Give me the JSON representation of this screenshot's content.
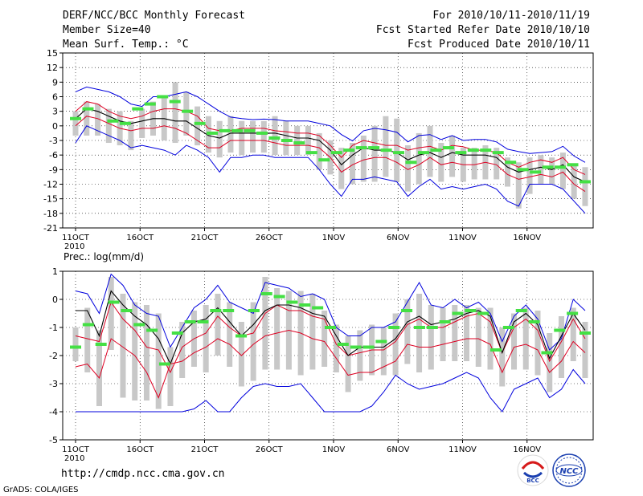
{
  "header": {
    "title": "DERF/NCC/BCC Monthly Forecast",
    "member": "Member Size=40",
    "variable1": "Mean Surf. Temp.: °C",
    "period": "For 2010/10/11-2010/11/19",
    "started": "Fcst Started Refer Date 2010/10/10",
    "produced": "Fcst Produced Date 2010/10/11"
  },
  "footer": {
    "url": "http://cmdp.ncc.cma.gov.cn",
    "grads": "GrADS: COLA/IGES",
    "logo1": "BCC",
    "logo2": "NCC"
  },
  "colors": {
    "blue": "#0000dd",
    "red": "#dd0022",
    "black": "#000000",
    "green": "#44e044",
    "gray": "#c8c8c8"
  },
  "chart_data": [
    {
      "type": "line",
      "title": "Mean Surf. Temp.: °C",
      "ylim": [
        -21,
        15
      ],
      "yticks": [
        15,
        12,
        9,
        6,
        3,
        0,
        -3,
        -6,
        -9,
        -12,
        -15,
        -18,
        -21
      ],
      "xtick_labels": [
        "11OCT",
        "16OCT",
        "21OCT",
        "26OCT",
        "1NOV",
        "6NOV",
        "11NOV",
        "16NOV"
      ],
      "year_label": "2010",
      "days": 40,
      "series": [
        {
          "name": "max",
          "color": "blue",
          "values": [
            7,
            8,
            7.5,
            7,
            6,
            4.5,
            4,
            6,
            6,
            6.5,
            7,
            6,
            4.5,
            3,
            1.8,
            1.5,
            1.3,
            1.4,
            1.3,
            1,
            1,
            1,
            0.5,
            0,
            -1.8,
            -3.1,
            -1,
            -0.5,
            -0.8,
            -1.3,
            -3.3,
            -2,
            -1.8,
            -2.8,
            -2,
            -3,
            -2.8,
            -2.8,
            -3.3,
            -4.8,
            -5.3,
            -5.7,
            -5.5,
            -5.3,
            -4.2,
            -6.2,
            -7.5
          ]
        },
        {
          "name": "upper",
          "color": "red",
          "values": [
            3,
            5,
            4.5,
            3,
            2,
            1.5,
            2,
            3,
            3.5,
            3.5,
            3,
            2,
            -0.5,
            -1,
            -1,
            -0.5,
            -0.5,
            -0.5,
            -1,
            -1.2,
            -1.5,
            -1.5,
            -2,
            -4,
            -6.5,
            -4,
            -3,
            -3.5,
            -4,
            -4,
            -5,
            -4.5,
            -4.2,
            -5,
            -4,
            -4.3,
            -5,
            -5,
            -5.5,
            -7.5,
            -8.5,
            -7.5,
            -7,
            -7.5,
            -6.5,
            -9,
            -10
          ]
        },
        {
          "name": "median",
          "color": "black",
          "values": [
            1.5,
            3.5,
            3,
            2,
            1,
            0.5,
            1,
            1.5,
            1.5,
            1,
            1,
            -0.5,
            -2,
            -2.5,
            -1.5,
            -1.5,
            -1.5,
            -1.5,
            -1.5,
            -2,
            -2.5,
            -2.5,
            -3,
            -5,
            -8,
            -6,
            -4.5,
            -5,
            -5,
            -5.5,
            -7,
            -6,
            -5.5,
            -6.5,
            -5.5,
            -6,
            -6,
            -6,
            -6.5,
            -8.5,
            -9.5,
            -9,
            -8.5,
            -9,
            -8,
            -10.5,
            -11.5
          ]
        },
        {
          "name": "lower",
          "color": "red",
          "values": [
            0,
            2,
            1.5,
            0.5,
            -0.5,
            -1,
            -0.5,
            -0.5,
            0,
            -0.5,
            -1.5,
            -3,
            -4.5,
            -4.5,
            -3,
            -3,
            -3,
            -3,
            -3.5,
            -4,
            -4,
            -4,
            -4.5,
            -6.5,
            -9.5,
            -8,
            -7,
            -6.5,
            -6.5,
            -7.5,
            -9,
            -8,
            -6.5,
            -8,
            -7.5,
            -8,
            -8,
            -7.5,
            -8,
            -10,
            -11,
            -10.5,
            -10,
            -10.5,
            -9.5,
            -12,
            -13.5
          ]
        },
        {
          "name": "min",
          "color": "blue",
          "values": [
            -3.5,
            0,
            -1,
            -2,
            -3,
            -4.5,
            -4,
            -4.5,
            -5,
            -6,
            -4,
            -5,
            -6.5,
            -9.5,
            -6.5,
            -6.5,
            -6,
            -6,
            -6.5,
            -6.5,
            -6.5,
            -6.5,
            -9,
            -12,
            -14.5,
            -11,
            -11,
            -10.5,
            -11,
            -11.5,
            -14.5,
            -12.5,
            -11,
            -13,
            -12.5,
            -13,
            -12.5,
            -12,
            -13,
            -15.5,
            -16.5,
            -12,
            -12,
            -12,
            -13,
            -15.5,
            -18
          ]
        }
      ],
      "boxes": {
        "hi": [
          3,
          5,
          4.5,
          3.5,
          3,
          1,
          3.5,
          5,
          6,
          9,
          7,
          4,
          2,
          1,
          2,
          1,
          1,
          1,
          2,
          1,
          0,
          0,
          -1.5,
          -3,
          -4.5,
          -3.5,
          -2,
          0,
          2,
          1.5,
          -4,
          -1.5,
          0,
          -3.5,
          -2,
          -4.5,
          -4.5,
          -4,
          -4.5,
          -6.5,
          -7.5,
          -6.5,
          -6,
          -6.5,
          -5.5,
          -8,
          -8.5
        ],
        "lo": [
          -2,
          -2,
          -2,
          -3.5,
          -4,
          -5,
          -2.5,
          -2,
          -3,
          -3.5,
          -2,
          -4,
          -5.5,
          -6.5,
          -5.5,
          -6,
          -5.5,
          -5.5,
          -6,
          -6,
          -6,
          -6,
          -9,
          -10,
          -13,
          -12,
          -11.5,
          -11.5,
          -10.5,
          -11.5,
          -13.5,
          -12,
          -10.5,
          -11.5,
          -10.5,
          -11.5,
          -11,
          -11,
          -11,
          -12.5,
          -17,
          -14,
          -12,
          -12,
          -13,
          -15,
          -16.5
        ]
      },
      "observed": [
        1.5,
        3.5,
        null,
        1,
        0.5,
        3.5,
        4.5,
        6,
        5,
        3,
        0.5,
        -1.5,
        -1,
        -1,
        -1,
        -1.5,
        -2.5,
        -3,
        -3.5,
        -5.5,
        -7,
        -5.5,
        -5,
        -4.5,
        -4.5,
        -5,
        -5.5,
        -7.5,
        -5.5,
        -5,
        -4.5,
        -5.5,
        -5,
        -5,
        -5.5,
        -7.5,
        -9,
        -9.5,
        -8.5,
        -8.5,
        -8,
        -11.5
      ]
    },
    {
      "type": "line",
      "title": "Prec.: log(mm/d)",
      "ylim": [
        -5,
        1
      ],
      "yticks": [
        1,
        0,
        -1,
        -2,
        -3,
        -4,
        -5
      ],
      "xtick_labels": [
        "11OCT",
        "16OCT",
        "21OCT",
        "26OCT",
        "1NOV",
        "6NOV",
        "11NOV",
        "16NOV"
      ],
      "year_label": "2010",
      "days": 40,
      "series": [
        {
          "name": "max",
          "color": "blue",
          "values": [
            0.3,
            0.2,
            -0.5,
            0.9,
            0.5,
            -0.2,
            -0.5,
            -0.6,
            -1.7,
            -1,
            -0.3,
            0,
            0.5,
            -0.1,
            -0.3,
            -0.5,
            0.6,
            0.5,
            0.4,
            0.1,
            0.2,
            0,
            -1,
            -1.3,
            -1.3,
            -1,
            -1,
            -0.8,
            -0.1,
            0.6,
            -0.2,
            -0.3,
            0,
            -0.3,
            -0.1,
            -0.5,
            -1.5,
            -0.6,
            -0.2,
            -0.7,
            -1.8,
            -1.4,
            0,
            -0.4
          ]
        },
        {
          "name": "upper",
          "color": "red",
          "values": [
            -1.3,
            -1.4,
            -1.5,
            -0.1,
            -0.7,
            -1.1,
            -1.7,
            -1.8,
            -2.6,
            -1.7,
            -1.4,
            -1.2,
            -0.6,
            -1,
            -1.3,
            -1.2,
            -0.5,
            -0.2,
            -0.4,
            -0.4,
            -0.6,
            -0.7,
            -1.6,
            -2,
            -1.9,
            -1.8,
            -1.8,
            -1.5,
            -0.9,
            -0.7,
            -1,
            -1,
            -0.8,
            -0.6,
            -0.5,
            -0.8,
            -1.9,
            -1,
            -0.7,
            -1.1,
            -2.2,
            -1.5,
            -0.7,
            -1.4
          ]
        },
        {
          "name": "median",
          "color": "black",
          "values": [
            -0.4,
            -0.4,
            -1.3,
            0.3,
            -0.2,
            -0.6,
            -0.9,
            -1.4,
            -2.3,
            -1.2,
            -0.8,
            -0.7,
            -0.3,
            -0.8,
            -1.3,
            -0.9,
            -0.4,
            -0.2,
            -0.2,
            -0.3,
            -0.5,
            -0.6,
            -1.3,
            -2,
            -1.7,
            -1.7,
            -1.7,
            -1.4,
            -0.8,
            -0.6,
            -0.9,
            -0.8,
            -0.7,
            -0.5,
            -0.4,
            -0.6,
            -1.9,
            -0.8,
            -0.5,
            -0.9,
            -2.1,
            -1.3,
            -0.5,
            -1.1
          ]
        },
        {
          "name": "lower",
          "color": "red",
          "values": [
            -2.4,
            -2.3,
            -2.8,
            -1.4,
            -1.7,
            -2,
            -2.6,
            -3.5,
            -2.3,
            -2.2,
            -1.9,
            -1.7,
            -1.4,
            -1.6,
            -2,
            -1.6,
            -1.3,
            -1.2,
            -1.1,
            -1.2,
            -1.4,
            -1.5,
            -2.1,
            -2.7,
            -2.6,
            -2.6,
            -2.4,
            -2.2,
            -1.6,
            -1.7,
            -1.7,
            -1.6,
            -1.5,
            -1.4,
            -1.4,
            -1.6,
            -2.6,
            -1.7,
            -1.6,
            -1.8,
            -2.6,
            -2.2,
            -1.5,
            -1.9
          ]
        },
        {
          "name": "min",
          "color": "blue",
          "values": [
            -4,
            -4,
            -4,
            -4,
            -4,
            -4,
            -4,
            -4,
            -4,
            -4,
            -3.9,
            -3.6,
            -4,
            -4,
            -3.5,
            -3.1,
            -3,
            -3.1,
            -3.1,
            -3,
            -3.5,
            -4,
            -4,
            -4,
            -4,
            -3.8,
            -3.3,
            -2.7,
            -3,
            -3.2,
            -3.1,
            -3,
            -2.8,
            -2.6,
            -2.8,
            -3.5,
            -4,
            -3.2,
            -3,
            -2.8,
            -3.5,
            -3.2,
            -2.5,
            -3
          ]
        }
      ],
      "boxes": {
        "hi": [
          -1,
          -0.3,
          -1.1,
          0.8,
          0.2,
          -0.1,
          -0.2,
          -0.5,
          -1.7,
          -0.8,
          -0.4,
          -0.2,
          0.2,
          -0.1,
          -0.8,
          -0.1,
          0.8,
          0.4,
          0.3,
          0.3,
          0.2,
          -0.4,
          -0.9,
          -1.3,
          -1.1,
          -0.9,
          -1,
          -0.5,
          0,
          0.2,
          -0.2,
          -0.3,
          -0.2,
          -0.2,
          -0.3,
          -0.3,
          -1,
          -0.5,
          -0.3,
          -0.4,
          -1.2,
          -0.6,
          -0.3,
          -0.8
        ],
        "lo": [
          -2.2,
          -2.6,
          -3.8,
          -1.8,
          -3.5,
          -3.6,
          -3.6,
          -3.9,
          -3.8,
          -2.8,
          -2.4,
          -2.6,
          -2,
          -2.4,
          -3.1,
          -2.9,
          -2.5,
          -2.5,
          -2.5,
          -2.7,
          -2.5,
          -2.4,
          -2.6,
          -3.3,
          -2.9,
          -2.7,
          -2.7,
          -2.7,
          -2.3,
          -2.6,
          -2.5,
          -2.2,
          -2.2,
          -2.2,
          -2.4,
          -2.5,
          -3.1,
          -2.5,
          -2.5,
          -2.7,
          -3.3,
          -2.8,
          -2.2,
          -2.8
        ]
      },
      "observed": [
        -1.7,
        -0.9,
        -1.6,
        -0.1,
        -0.4,
        -0.9,
        -1.1,
        -2.3,
        -1.2,
        -0.8,
        -0.8,
        -0.4,
        -0.4,
        -1.3,
        -0.4,
        0.2,
        0.1,
        -0.1,
        -0.2,
        -0.3,
        -1,
        -1.6,
        -1.7,
        -1.7,
        -1.5,
        -1,
        -0.4,
        -1,
        -1,
        -0.8,
        -0.5,
        -0.4,
        -0.5,
        -1.8,
        -1,
        -0.4,
        -0.8,
        -1.9,
        -1.1,
        -0.5,
        -1.2
      ]
    }
  ]
}
